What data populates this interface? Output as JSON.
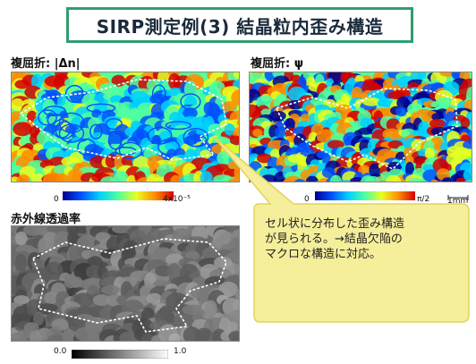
{
  "title": "SIRP測定例(3)  結晶粒内歪み構造",
  "panels": {
    "birefringence_magnitude": {
      "label": "複屈折: |Δn|",
      "cbar_min": "0",
      "cbar_max": "4x10⁻⁵"
    },
    "birefringence_angle": {
      "label": "複屈折: ψ",
      "cbar_min": "0",
      "cbar_max": "π/2"
    },
    "infrared": {
      "label": "赤外線透過率",
      "cbar_min": "0.0",
      "cbar_max": "1.0"
    }
  },
  "scale_bar": {
    "label": "1mm"
  },
  "callout": {
    "text": "セル状に分布した歪み構造\nが見られる。→結晶欠陥の\nマクロな構造に対応。",
    "color": "#f5ee9a"
  },
  "colors": {
    "title_border": "#2f9e6e",
    "grain_outline": "#ffffff"
  },
  "colormaps": {
    "jet": [
      "#00008f",
      "#0050ff",
      "#00d0ff",
      "#50ff9f",
      "#e8ff20",
      "#ff8c00",
      "#d40000"
    ],
    "gray": [
      "#000000",
      "#ffffff"
    ]
  }
}
